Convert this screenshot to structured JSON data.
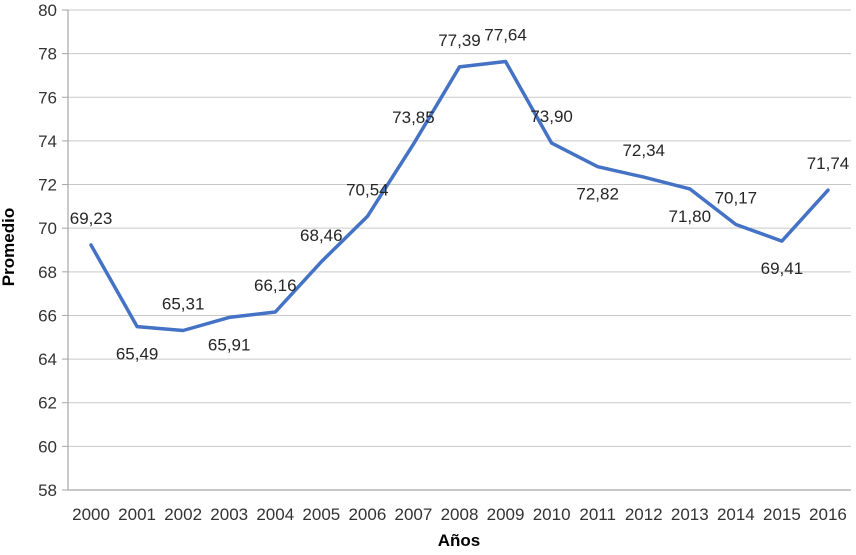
{
  "chart_data": {
    "type": "line",
    "title": "",
    "xlabel": "Años",
    "ylabel": "Promedio",
    "categories": [
      "2000",
      "2001",
      "2002",
      "2003",
      "2004",
      "2005",
      "2006",
      "2007",
      "2008",
      "2009",
      "2010",
      "2011",
      "2012",
      "2013",
      "2014",
      "2015",
      "2016"
    ],
    "values": [
      69.23,
      65.49,
      65.31,
      65.91,
      66.16,
      68.46,
      70.54,
      73.85,
      77.39,
      77.64,
      73.9,
      72.82,
      72.34,
      71.8,
      70.17,
      69.41,
      71.74
    ],
    "point_labels": [
      "69,23",
      "65,49",
      "65,31",
      "65,91",
      "66,16",
      "68,46",
      "70,54",
      "73,85",
      "77,39",
      "77,64",
      "73,90",
      "72,82",
      "72,34",
      "71,80",
      "70,17",
      "69,41",
      "71,74"
    ],
    "label_placement": [
      "above",
      "below",
      "above",
      "below",
      "above",
      "above",
      "above",
      "above",
      "above",
      "above",
      "above",
      "below",
      "above",
      "below",
      "above",
      "below",
      "above"
    ],
    "ylim": [
      58,
      80
    ],
    "ytick_step": 2,
    "grid": "horizontal",
    "legend": "none",
    "colors": {
      "line": "#4472C4",
      "grid": "#c9c9c9",
      "axis": "#a6a6a6",
      "tick_text": "#333333",
      "data_label_text": "#262626",
      "axis_title_text": "#1a1a1a"
    }
  }
}
